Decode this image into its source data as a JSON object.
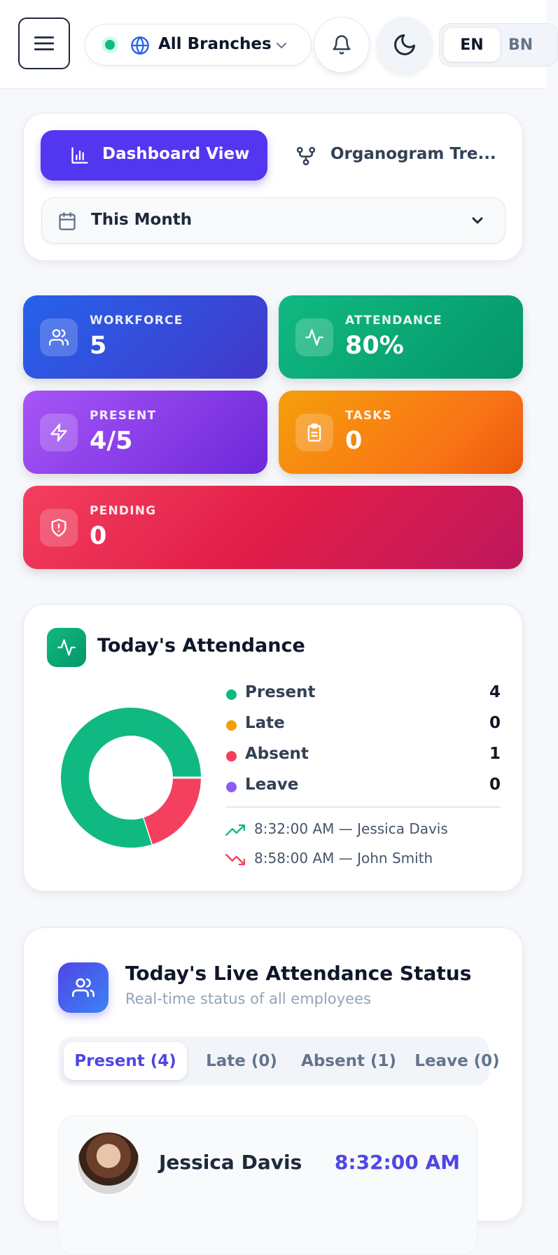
{
  "header": {
    "branch": "All Branches",
    "languages": [
      "EN",
      "BN"
    ]
  },
  "view_tabs": [
    "Dashboard View",
    "Organogram Tre..."
  ],
  "period": "This Month",
  "stats": [
    {
      "label": "WORKFORCE",
      "value": "5"
    },
    {
      "label": "ATTENDANCE",
      "value": "80%"
    },
    {
      "label": "PRESENT",
      "value": "4/5"
    },
    {
      "label": "TASKS",
      "value": "0"
    },
    {
      "label": "PENDING",
      "value": "0"
    }
  ],
  "attendance": {
    "title": "Today's Attendance",
    "items": [
      {
        "name": "Present",
        "value": 4,
        "color": "#10b981"
      },
      {
        "name": "Late",
        "value": 0,
        "color": "#f59e0b"
      },
      {
        "name": "Absent",
        "value": 1,
        "color": "#f43f5e"
      },
      {
        "name": "Leave",
        "value": 0,
        "color": "#8b5cf6"
      }
    ],
    "events": [
      "8:32:00 AM — Jessica Davis",
      "8:58:00 AM — John Smith"
    ]
  },
  "live": {
    "title": "Today's Live Attendance Status",
    "subtitle": "Real-time status of all employees",
    "tabs": [
      "Present (4)",
      "Late (0)",
      "Absent (1)",
      "Leave (0)"
    ],
    "employees": [
      {
        "name": "Jessica Davis",
        "time": "8:32:00 AM"
      }
    ]
  }
}
